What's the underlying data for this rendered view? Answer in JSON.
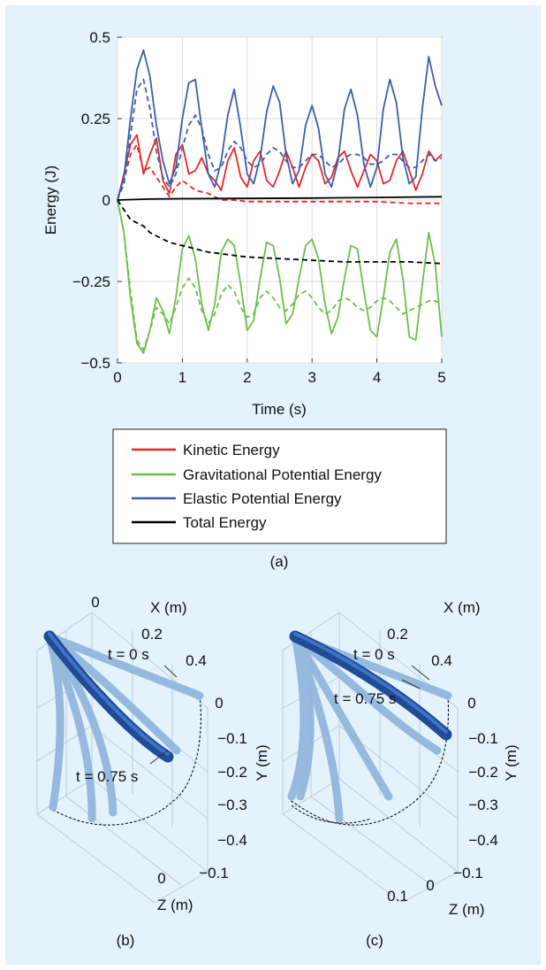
{
  "chart_data": [
    {
      "type": "line",
      "xlabel": "Time (s)",
      "ylabel": "Energy (J)",
      "xlim": [
        0,
        5
      ],
      "ylim": [
        -0.5,
        0.5
      ],
      "xticks": [
        "0",
        "1",
        "2",
        "3",
        "4",
        "5"
      ],
      "yticks": [
        "0.5",
        "0.25",
        "0",
        "−0.25",
        "−0.5"
      ],
      "grid": true,
      "legend_position": "below",
      "series": [
        {
          "name": "Kinetic Energy",
          "color": "#e8262a",
          "style": "solid",
          "x": [
            0,
            0.1,
            0.2,
            0.3,
            0.4,
            0.5,
            0.6,
            0.7,
            0.8,
            0.9,
            1.0,
            1.1,
            1.2,
            1.3,
            1.4,
            1.5,
            1.6,
            1.7,
            1.8,
            1.9,
            2.0,
            2.1,
            2.2,
            2.3,
            2.4,
            2.5,
            2.6,
            2.7,
            2.8,
            2.9,
            3.0,
            3.1,
            3.2,
            3.3,
            3.4,
            3.5,
            3.6,
            3.7,
            3.8,
            3.9,
            4.0,
            4.1,
            4.2,
            4.3,
            4.4,
            4.5,
            4.6,
            4.7,
            4.8,
            4.9,
            5.0
          ],
          "y": [
            0,
            0.08,
            0.17,
            0.2,
            0.08,
            0.14,
            0.19,
            0.06,
            0.02,
            0.14,
            0.17,
            0.08,
            0.09,
            0.13,
            0.08,
            0.06,
            0.03,
            0.12,
            0.16,
            0.07,
            0.04,
            0.12,
            0.15,
            0.06,
            0.04,
            0.09,
            0.15,
            0.1,
            0.04,
            0.1,
            0.14,
            0.12,
            0.05,
            0.07,
            0.13,
            0.15,
            0.09,
            0.04,
            0.09,
            0.14,
            0.12,
            0.05,
            0.06,
            0.12,
            0.15,
            0.09,
            0.03,
            0.08,
            0.15,
            0.12,
            0.14
          ]
        },
        {
          "name": "Kinetic Energy (dashed)",
          "color": "#e8262a",
          "style": "dashed",
          "x": [
            0,
            0.1,
            0.2,
            0.3,
            0.4,
            0.5,
            0.6,
            0.7,
            0.8,
            0.9,
            1.0,
            1.2,
            1.4,
            1.6,
            1.8,
            2.0,
            2.5,
            3.0,
            3.5,
            4.0,
            4.5,
            5.0
          ],
          "y": [
            0,
            0.06,
            0.14,
            0.17,
            0.09,
            0.1,
            0.07,
            0.04,
            0.01,
            0.04,
            0.06,
            0.03,
            0.02,
            0.0,
            0.0,
            -0.005,
            -0.005,
            -0.005,
            -0.005,
            -0.005,
            -0.01,
            -0.01
          ]
        },
        {
          "name": "Gravitational Potential Energy",
          "color": "#6dbf4b",
          "style": "solid",
          "x": [
            0,
            0.1,
            0.2,
            0.3,
            0.4,
            0.5,
            0.6,
            0.7,
            0.8,
            0.9,
            1.0,
            1.1,
            1.2,
            1.3,
            1.4,
            1.5,
            1.6,
            1.7,
            1.8,
            1.9,
            2.0,
            2.1,
            2.2,
            2.3,
            2.4,
            2.5,
            2.6,
            2.7,
            2.8,
            2.9,
            3.0,
            3.1,
            3.2,
            3.3,
            3.4,
            3.5,
            3.6,
            3.7,
            3.8,
            3.9,
            4.0,
            4.1,
            4.2,
            4.3,
            4.4,
            4.5,
            4.6,
            4.7,
            4.8,
            4.9,
            5.0
          ],
          "y": [
            0,
            -0.1,
            -0.3,
            -0.44,
            -0.47,
            -0.4,
            -0.3,
            -0.34,
            -0.41,
            -0.3,
            -0.15,
            -0.11,
            -0.18,
            -0.32,
            -0.4,
            -0.32,
            -0.16,
            -0.12,
            -0.14,
            -0.26,
            -0.4,
            -0.37,
            -0.24,
            -0.13,
            -0.14,
            -0.24,
            -0.38,
            -0.35,
            -0.24,
            -0.14,
            -0.12,
            -0.18,
            -0.32,
            -0.41,
            -0.36,
            -0.24,
            -0.14,
            -0.15,
            -0.28,
            -0.4,
            -0.42,
            -0.3,
            -0.16,
            -0.12,
            -0.24,
            -0.42,
            -0.43,
            -0.26,
            -0.1,
            -0.2,
            -0.42
          ]
        },
        {
          "name": "Gravitational Potential Energy (dashed)",
          "color": "#6dbf4b",
          "style": "dashed",
          "x": [
            0,
            0.1,
            0.2,
            0.3,
            0.4,
            0.5,
            0.6,
            0.7,
            0.8,
            0.9,
            1.0,
            1.1,
            1.2,
            1.3,
            1.4,
            1.5,
            1.6,
            1.7,
            1.8,
            1.9,
            2.0,
            2.1,
            2.2,
            2.3,
            2.4,
            2.5,
            2.6,
            2.7,
            2.8,
            2.9,
            3.0,
            3.1,
            3.2,
            3.3,
            3.4,
            3.5,
            3.6,
            3.7,
            3.8,
            3.9,
            4.0,
            4.1,
            4.2,
            4.3,
            4.4,
            4.5,
            4.6,
            4.7,
            4.8,
            4.9,
            5.0
          ],
          "y": [
            0,
            -0.1,
            -0.28,
            -0.43,
            -0.46,
            -0.4,
            -0.33,
            -0.35,
            -0.38,
            -0.33,
            -0.27,
            -0.24,
            -0.27,
            -0.34,
            -0.38,
            -0.35,
            -0.29,
            -0.26,
            -0.28,
            -0.33,
            -0.36,
            -0.35,
            -0.3,
            -0.28,
            -0.3,
            -0.33,
            -0.34,
            -0.32,
            -0.29,
            -0.28,
            -0.3,
            -0.33,
            -0.35,
            -0.34,
            -0.31,
            -0.3,
            -0.31,
            -0.33,
            -0.34,
            -0.33,
            -0.31,
            -0.3,
            -0.31,
            -0.33,
            -0.35,
            -0.34,
            -0.33,
            -0.32,
            -0.31,
            -0.31,
            -0.32
          ]
        },
        {
          "name": "Elastic Potential Energy",
          "color": "#3b5faa",
          "style": "solid",
          "x": [
            0,
            0.1,
            0.2,
            0.3,
            0.4,
            0.5,
            0.6,
            0.7,
            0.8,
            0.9,
            1.0,
            1.1,
            1.2,
            1.3,
            1.4,
            1.5,
            1.6,
            1.7,
            1.8,
            1.9,
            2.0,
            2.1,
            2.2,
            2.3,
            2.4,
            2.5,
            2.6,
            2.7,
            2.8,
            2.9,
            3.0,
            3.1,
            3.2,
            3.3,
            3.4,
            3.5,
            3.6,
            3.7,
            3.8,
            3.9,
            4.0,
            4.1,
            4.2,
            4.3,
            4.4,
            4.5,
            4.6,
            4.7,
            4.8,
            4.9,
            5.0
          ],
          "y": [
            0,
            0.07,
            0.25,
            0.4,
            0.46,
            0.38,
            0.23,
            0.12,
            0.05,
            0.1,
            0.25,
            0.36,
            0.37,
            0.22,
            0.08,
            0.04,
            0.12,
            0.26,
            0.34,
            0.22,
            0.08,
            0.05,
            0.13,
            0.27,
            0.35,
            0.3,
            0.14,
            0.05,
            0.09,
            0.23,
            0.29,
            0.22,
            0.08,
            0.04,
            0.12,
            0.28,
            0.34,
            0.26,
            0.11,
            0.04,
            0.1,
            0.28,
            0.37,
            0.3,
            0.13,
            0.05,
            0.07,
            0.28,
            0.44,
            0.35,
            0.29
          ]
        },
        {
          "name": "Elastic Potential Energy (dashed)",
          "color": "#3b5faa",
          "style": "dashed",
          "x": [
            0,
            0.1,
            0.2,
            0.3,
            0.4,
            0.5,
            0.6,
            0.7,
            0.8,
            0.9,
            1.0,
            1.1,
            1.2,
            1.3,
            1.4,
            1.5,
            1.6,
            1.7,
            1.8,
            1.9,
            2.0,
            2.1,
            2.2,
            2.3,
            2.4,
            2.5,
            2.6,
            2.7,
            2.8,
            2.9,
            3.0,
            3.1,
            3.2,
            3.3,
            3.4,
            3.5,
            3.6,
            3.7,
            3.8,
            3.9,
            4.0,
            4.1,
            4.2,
            4.3,
            4.4,
            4.5,
            4.6,
            4.7,
            4.8,
            4.9,
            5.0
          ],
          "y": [
            0,
            0.05,
            0.2,
            0.34,
            0.37,
            0.28,
            0.15,
            0.07,
            0.04,
            0.08,
            0.16,
            0.23,
            0.26,
            0.22,
            0.14,
            0.09,
            0.1,
            0.15,
            0.18,
            0.16,
            0.12,
            0.1,
            0.11,
            0.14,
            0.16,
            0.15,
            0.12,
            0.1,
            0.1,
            0.12,
            0.14,
            0.14,
            0.12,
            0.1,
            0.11,
            0.13,
            0.14,
            0.14,
            0.13,
            0.11,
            0.11,
            0.12,
            0.14,
            0.14,
            0.12,
            0.1,
            0.1,
            0.12,
            0.14,
            0.12,
            0.13
          ]
        },
        {
          "name": "Total Energy",
          "color": "#000000",
          "style": "solid",
          "x": [
            0,
            0.5,
            1.0,
            2.0,
            3.0,
            4.0,
            5.0
          ],
          "y": [
            0,
            0.003,
            0.004,
            0.005,
            0.006,
            0.008,
            0.01
          ]
        },
        {
          "name": "Total Energy (dashed)",
          "color": "#000000",
          "style": "dashed",
          "x": [
            0,
            0.1,
            0.2,
            0.3,
            0.4,
            0.5,
            0.6,
            0.7,
            0.8,
            0.9,
            1.0,
            1.2,
            1.4,
            1.6,
            1.8,
            2.0,
            2.5,
            3.0,
            3.5,
            4.0,
            4.5,
            5.0
          ],
          "y": [
            0,
            -0.03,
            -0.06,
            -0.07,
            -0.08,
            -0.1,
            -0.11,
            -0.12,
            -0.13,
            -0.135,
            -0.14,
            -0.15,
            -0.16,
            -0.165,
            -0.17,
            -0.175,
            -0.18,
            -0.185,
            -0.19,
            -0.19,
            -0.19,
            -0.195
          ]
        }
      ],
      "legend": {
        "entries": [
          {
            "label": "Kinetic Energy",
            "color": "#e8262a"
          },
          {
            "label": "Gravitational Potential Energy",
            "color": "#6dbf4b"
          },
          {
            "label": "Elastic Potential Energy",
            "color": "#3b5faa"
          },
          {
            "label": "Total Energy",
            "color": "#000000"
          }
        ]
      },
      "caption": "(a)"
    },
    {
      "type": "3d-line",
      "caption": "(b)",
      "axes": {
        "x": {
          "label": "X (m)",
          "ticks": [
            "0",
            "0.2",
            "0.4"
          ]
        },
        "y": {
          "label": "Y (m)",
          "ticks": [
            "0",
            "−0.1",
            "−0.2",
            "−0.3",
            "−0.4"
          ]
        },
        "z": {
          "label": "Z (m)",
          "ticks": [
            "0",
            "−0.1"
          ]
        }
      },
      "annotations": [
        "t = 0 s",
        "t = 0.75 s"
      ]
    },
    {
      "type": "3d-line",
      "caption": "(c)",
      "axes": {
        "x": {
          "label": "X (m)",
          "ticks": [
            "0.2",
            "0.4"
          ]
        },
        "y": {
          "label": "Y (m)",
          "ticks": [
            "0",
            "−0.1",
            "−0.2",
            "−0.3",
            "−0.4"
          ]
        },
        "z": {
          "label": "Z (m)",
          "ticks": [
            "0.1",
            "0",
            "−0.1"
          ]
        }
      },
      "annotations": [
        "t = 0 s",
        "t = 0.75 s"
      ]
    }
  ],
  "colors": {
    "background": "#e3f2fb",
    "kinetic": "#e8262a",
    "gravitational": "#6dbf4b",
    "elastic": "#3b5faa",
    "total": "#000000",
    "rod_dark": "#1f4b97",
    "rod_light": "#8db3dd"
  }
}
